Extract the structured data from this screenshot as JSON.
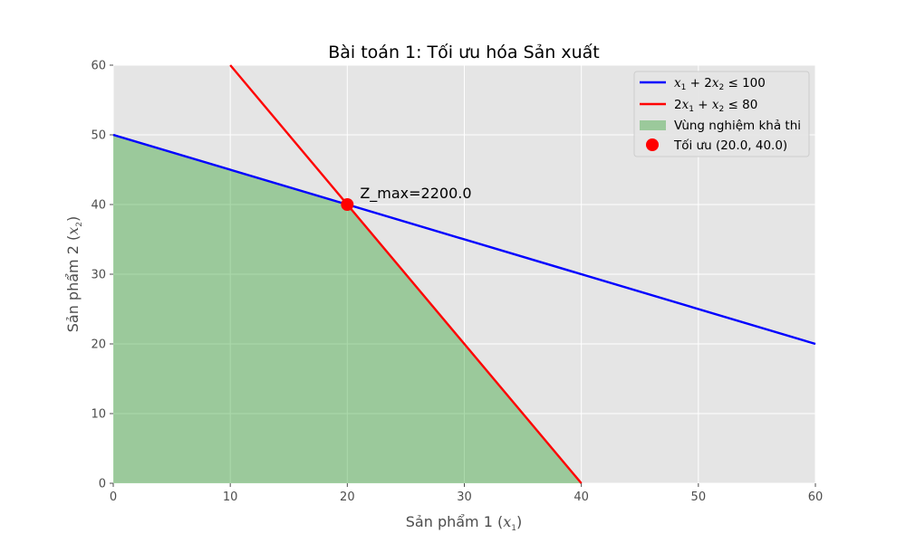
{
  "chart_data": {
    "type": "line",
    "title": "Bài toán 1: Tối ưu hóa Sản xuất",
    "xlabel": "Sản phẩm 1",
    "xlabel_var": "x",
    "xlabel_sub": "1",
    "ylabel": "Sản phẩm 2",
    "ylabel_var": "x",
    "ylabel_sub": "2",
    "xlim": [
      0,
      60
    ],
    "ylim": [
      0,
      60
    ],
    "xticks": [
      0,
      10,
      20,
      30,
      40,
      50,
      60
    ],
    "yticks": [
      0,
      10,
      20,
      30,
      40,
      50,
      60
    ],
    "grid": true,
    "legend_position": "top-right",
    "series": [
      {
        "name": "x1 + 2x2 ≤ 100",
        "color": "#0000ff",
        "points": [
          [
            0,
            50
          ],
          [
            60,
            20
          ]
        ]
      },
      {
        "name": "2x1 + x2 ≤ 80",
        "color": "#ff0000",
        "points": [
          [
            10,
            60
          ],
          [
            40,
            0
          ]
        ]
      }
    ],
    "feasible_region": {
      "name": "Vùng nghiệm khả thi",
      "color": "#2ca02c",
      "polygon": [
        [
          0,
          0
        ],
        [
          0,
          50
        ],
        [
          20,
          40
        ],
        [
          40,
          0
        ]
      ]
    },
    "optimum": {
      "name": "Tối ưu (20.0, 40.0)",
      "x": 20,
      "y": 40,
      "color": "#ff0000",
      "annotation": "Z_max=2200.0"
    }
  }
}
